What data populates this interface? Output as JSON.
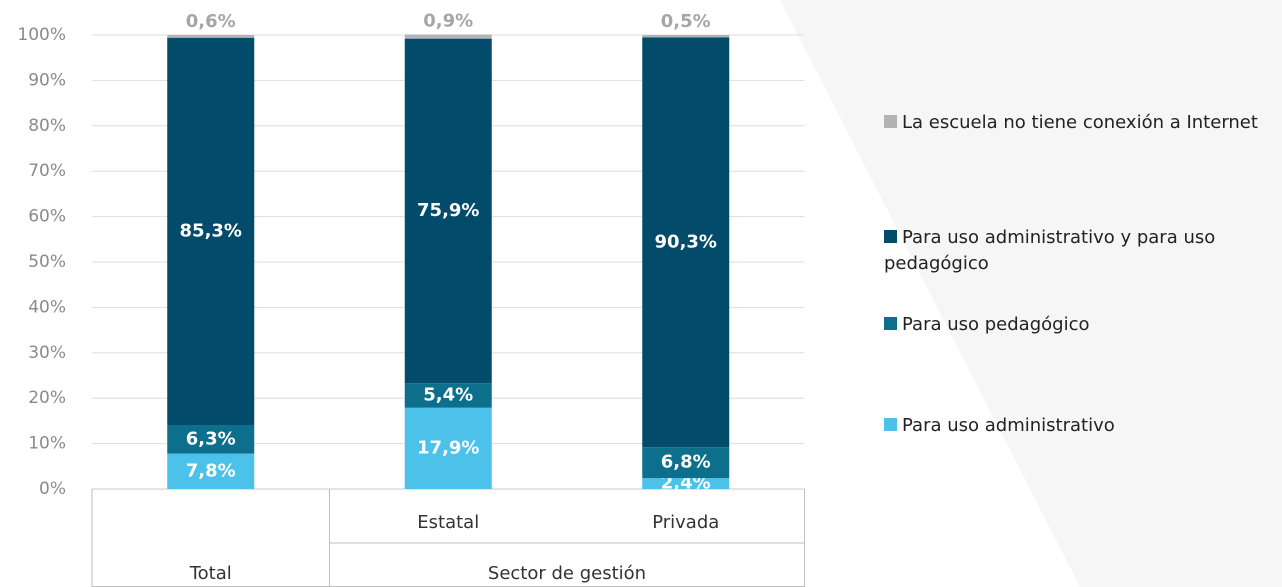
{
  "chart_data": {
    "type": "stacked_bar",
    "categories": [
      "Total",
      "Estatal",
      "Privada"
    ],
    "group_label": "Sector de gestión",
    "ylim": [
      0,
      100
    ],
    "yticks": [
      {
        "value": 0,
        "label": "0%"
      },
      {
        "value": 10,
        "label": "10%"
      },
      {
        "value": 20,
        "label": "20%"
      },
      {
        "value": 30,
        "label": "30%"
      },
      {
        "value": 40,
        "label": "40%"
      },
      {
        "value": 50,
        "label": "50%"
      },
      {
        "value": 60,
        "label": "60%"
      },
      {
        "value": 70,
        "label": "70%"
      },
      {
        "value": 80,
        "label": "80%"
      },
      {
        "value": 90,
        "label": "90%"
      },
      {
        "value": 100,
        "label": "100%"
      }
    ],
    "grid": true,
    "legend": "right",
    "series": [
      {
        "name": "Para uso administrativo",
        "color": "#4cc2ea",
        "values": [
          7.8,
          17.9,
          2.4
        ],
        "value_labels": [
          "7,8%",
          "17,9%",
          "2,4%"
        ]
      },
      {
        "name": "Para uso pedagógico",
        "color": "#0e6f8c",
        "values": [
          6.3,
          5.4,
          6.8
        ],
        "value_labels": [
          "6,3%",
          "5,4%",
          "6,8%"
        ]
      },
      {
        "name": "Para uso administrativo y para uso pedagógico",
        "color": "#034b6a",
        "values": [
          85.3,
          75.9,
          90.3
        ],
        "value_labels": [
          "85,3%",
          "75,9%",
          "90,3%"
        ]
      },
      {
        "name": "La escuela no tiene conexión a Internet",
        "color": "#b3b3b3",
        "values": [
          0.6,
          0.9,
          0.5
        ],
        "value_labels": [
          "0,6%",
          "0,9%",
          "0,5%"
        ]
      }
    ]
  }
}
